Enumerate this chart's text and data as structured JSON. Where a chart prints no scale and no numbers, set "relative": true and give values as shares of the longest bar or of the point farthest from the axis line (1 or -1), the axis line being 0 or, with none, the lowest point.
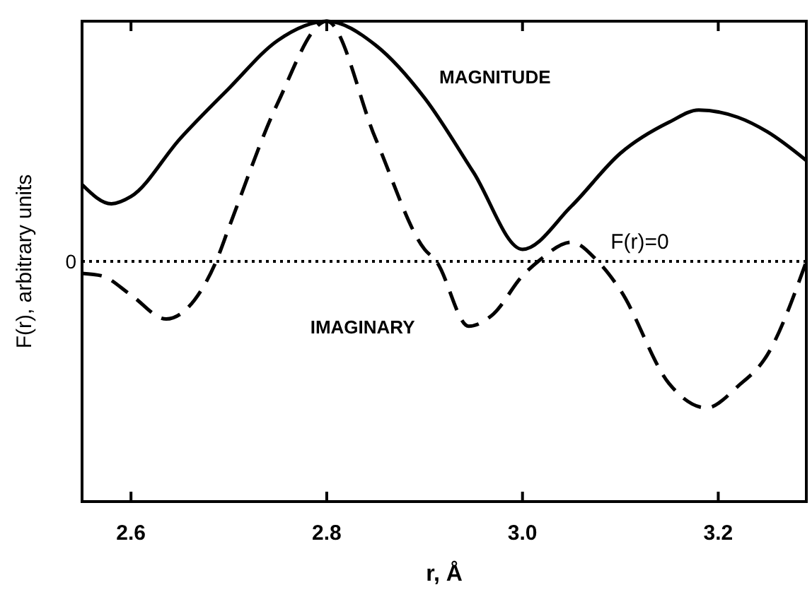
{
  "chart_data": {
    "type": "line",
    "relative": true,
    "xlabel": "r, Å",
    "ylabel": "F(r), arbitrary units",
    "xlim": [
      2.55,
      3.29
    ],
    "xticks": [
      2.6,
      2.8,
      {
        "value": 3,
        "label": "3.0"
      },
      3.2
    ],
    "series": [
      {
        "name": "MAGNITUDE",
        "color": "#000000",
        "line_style": "solid",
        "x": [
          2.55,
          2.58,
          2.6,
          2.65,
          2.7,
          2.75,
          2.8,
          2.85,
          2.9,
          2.95,
          3.0,
          3.05,
          3.1,
          3.15,
          3.18,
          3.22,
          3.25,
          3.29
        ],
        "values": [
          0.32,
          0.24,
          0.27,
          0.51,
          0.72,
          0.92,
          1.0,
          0.9,
          0.68,
          0.37,
          0.05,
          0.23,
          0.45,
          0.58,
          0.63,
          0.6,
          0.54,
          0.42
        ]
      },
      {
        "name": "IMAGINARY",
        "color": "#000000",
        "line_style": "dashed",
        "x": [
          2.55,
          2.57,
          2.6,
          2.636,
          2.665,
          2.687,
          2.7,
          2.75,
          2.8,
          2.85,
          2.9,
          2.912,
          2.945,
          2.97,
          3.0,
          3.016,
          3.05,
          3.077,
          3.1,
          3.15,
          3.188,
          3.22,
          3.25,
          3.29
        ],
        "values": [
          -0.05,
          -0.06,
          -0.14,
          -0.24,
          -0.16,
          0,
          0.14,
          0.66,
          1.0,
          0.51,
          0.05,
          0,
          -0.27,
          -0.22,
          -0.06,
          0,
          0.08,
          0,
          -0.12,
          -0.51,
          -0.61,
          -0.52,
          -0.39,
          0
        ]
      }
    ],
    "ref_lines": [
      {
        "axis": "y",
        "value": 0,
        "label": "F(r)=0",
        "line_style": "dotted",
        "color": "#000000"
      }
    ],
    "annotations": [
      "0"
    ]
  }
}
